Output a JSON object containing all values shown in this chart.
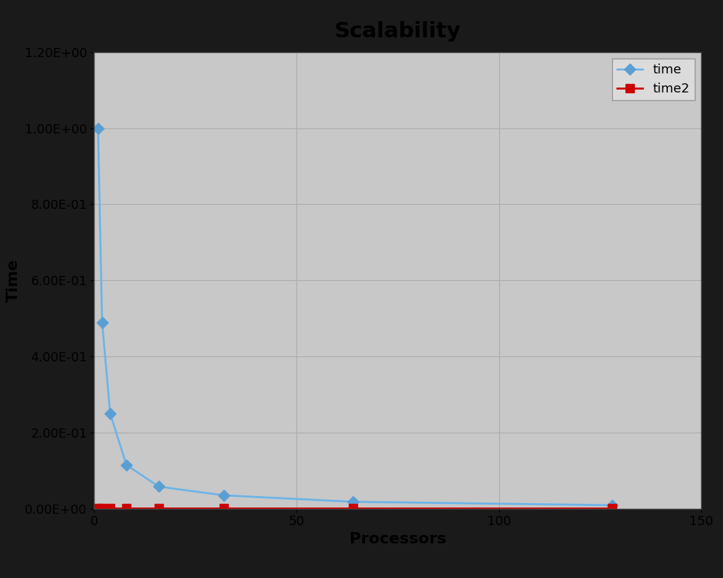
{
  "title": "Scalability",
  "xlabel": "Processors",
  "ylabel": "Time",
  "background_color": "#c8c8c8",
  "outer_background": "#1a1a1a",
  "plot_bg_color": "#c8c8c8",
  "border_color": "#000000",
  "xlim": [
    0,
    150
  ],
  "ylim": [
    0.0,
    1.2
  ],
  "yticks": [
    0.0,
    0.2,
    0.4,
    0.6,
    0.8,
    1.0,
    1.2
  ],
  "xticks": [
    0,
    50,
    100,
    150
  ],
  "series_order": [
    "time",
    "time2"
  ],
  "series": {
    "time": {
      "x": [
        1,
        2,
        4,
        8,
        16,
        32,
        64,
        128
      ],
      "y": [
        1.0,
        0.49,
        0.25,
        0.115,
        0.058,
        0.035,
        0.018,
        0.009
      ],
      "color": "#6cb4e8",
      "marker": "D",
      "marker_color": "#5a9fd4",
      "linewidth": 2.0,
      "markersize": 8,
      "label": "time"
    },
    "time2": {
      "x": [
        1,
        2,
        4,
        8,
        16,
        32,
        64,
        128
      ],
      "y": [
        0.002,
        0.002,
        0.002,
        0.002,
        0.002,
        0.002,
        0.002,
        0.002
      ],
      "color": "#cc0000",
      "marker": "s",
      "marker_color": "#cc0000",
      "linewidth": 2.0,
      "markersize": 8,
      "label": "time2"
    }
  },
  "title_fontsize": 22,
  "axis_label_fontsize": 16,
  "tick_fontsize": 13,
  "legend_fontsize": 13,
  "grid_color": "#aaaaaa",
  "grid_linewidth": 0.8
}
